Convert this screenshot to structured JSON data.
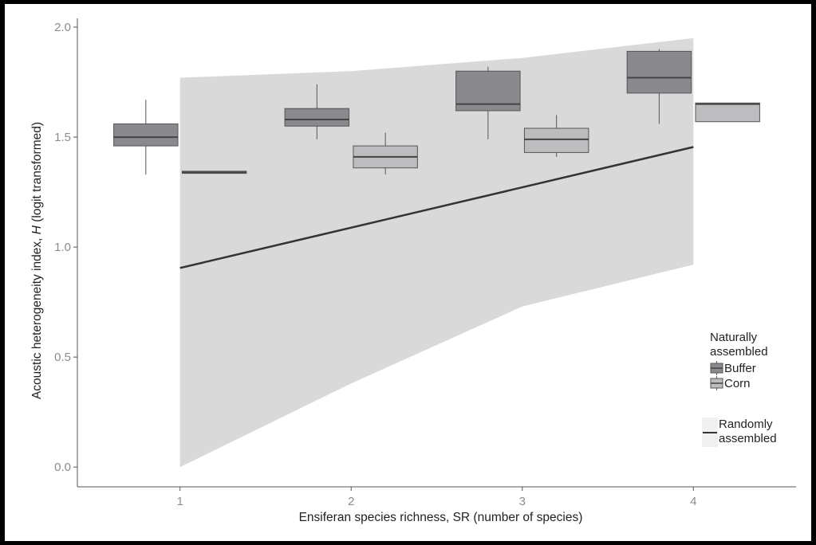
{
  "chart_data": {
    "type": "box",
    "xlabel": "Ensiferan species richness, SR (number of species)",
    "ylabel_main": "Acoustic heterogeneity index, ",
    "ylabel_var": "H",
    "ylabel_suffix": " (logit transformed)",
    "xlim": [
      0.4,
      4.6
    ],
    "ylim": [
      -0.09,
      2.04
    ],
    "x_ticks": [
      {
        "value": 1,
        "label": "1"
      },
      {
        "value": 2,
        "label": "2"
      },
      {
        "value": 3,
        "label": "3"
      },
      {
        "value": 4,
        "label": "4"
      }
    ],
    "y_ticks": [
      {
        "value": 0.0,
        "label": "0.0"
      },
      {
        "value": 0.5,
        "label": "0.5"
      },
      {
        "value": 1.0,
        "label": "1.0"
      },
      {
        "value": 1.5,
        "label": "1.5"
      },
      {
        "value": 2.0,
        "label": "2.0"
      }
    ],
    "random_band": [
      {
        "x": 1,
        "lower": 0.0,
        "upper": 1.77
      },
      {
        "x": 2,
        "lower": 0.38,
        "upper": 1.8
      },
      {
        "x": 3,
        "lower": 0.73,
        "upper": 1.86
      },
      {
        "x": 4,
        "lower": 0.92,
        "upper": 1.95
      }
    ],
    "random_line": [
      {
        "x": 1,
        "y": 0.905
      },
      {
        "x": 4,
        "y": 1.455
      }
    ],
    "boxes": [
      {
        "group": "Buffer",
        "x": 1,
        "q1": 1.46,
        "median": 1.5,
        "q3": 1.56,
        "lower": 1.33,
        "upper": 1.67
      },
      {
        "group": "Corn",
        "x": 1,
        "q1": 1.335,
        "median": 1.34,
        "q3": 1.345,
        "lower": 1.335,
        "upper": 1.345
      },
      {
        "group": "Buffer",
        "x": 2,
        "q1": 1.55,
        "median": 1.58,
        "q3": 1.63,
        "lower": 1.49,
        "upper": 1.74
      },
      {
        "group": "Corn",
        "x": 2,
        "q1": 1.36,
        "median": 1.41,
        "q3": 1.46,
        "lower": 1.33,
        "upper": 1.52
      },
      {
        "group": "Buffer",
        "x": 3,
        "q1": 1.62,
        "median": 1.65,
        "q3": 1.8,
        "lower": 1.49,
        "upper": 1.82
      },
      {
        "group": "Corn",
        "x": 3,
        "q1": 1.43,
        "median": 1.49,
        "q3": 1.54,
        "lower": 1.41,
        "upper": 1.6
      },
      {
        "group": "Buffer",
        "x": 4,
        "q1": 1.7,
        "median": 1.77,
        "q3": 1.89,
        "lower": 1.56,
        "upper": 1.9
      },
      {
        "group": "Corn",
        "x": 4,
        "q1": 1.57,
        "median": 1.65,
        "q3": 1.655,
        "lower": 1.57,
        "upper": 1.655
      }
    ],
    "legend": {
      "title_line1": "Naturally",
      "title_line2": "assembled",
      "items": [
        {
          "label": "Buffer",
          "color": "#8a8a8e"
        },
        {
          "label": "Corn",
          "color": "#bdbdbf"
        }
      ],
      "random_line1": "Randomly",
      "random_line2": "assembled"
    },
    "colors": {
      "buffer": "#8a8a8e",
      "corn": "#bdbdbf",
      "band": "#d9d9da",
      "line": "#333333",
      "box_stroke": "#555555"
    }
  }
}
